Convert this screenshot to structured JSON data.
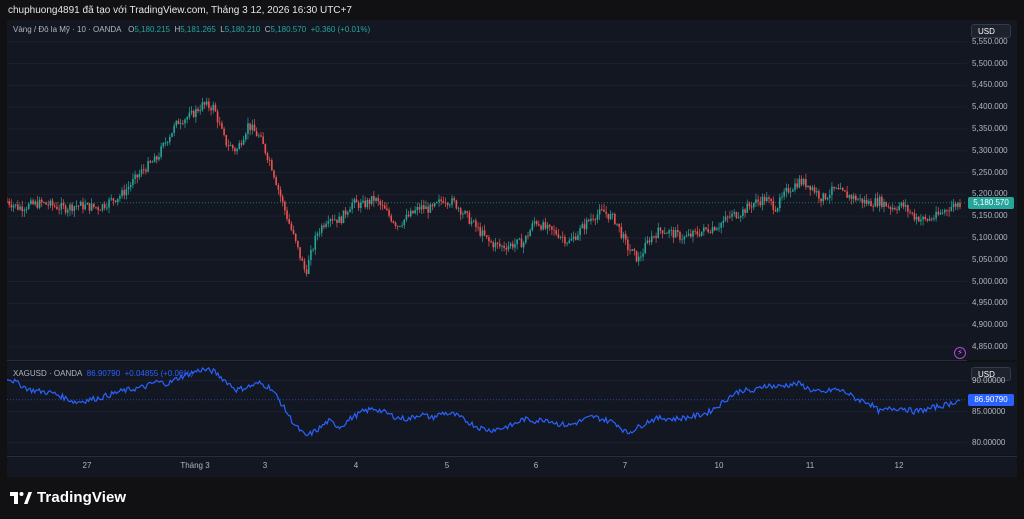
{
  "header": {
    "text": "chuphuong4891 đã tạo với TradingView.com, Tháng 3 12, 2026 16:30 UTC+7"
  },
  "legend_main": {
    "symbol": "Vàng / Đô la Mỹ · 10 · OANDA",
    "o_label": "O",
    "o_value": "5,180.215",
    "h_label": "H",
    "h_value": "5,181.265",
    "l_label": "L",
    "l_value": "5,180.210",
    "c_label": "C",
    "c_value": "5,180.570",
    "change": "+0.360 (+0.01%)"
  },
  "legend_sub": {
    "symbol": "XAGUSD · OANDA",
    "value": "86.90790",
    "change": "+0.04855 (+0.06%)"
  },
  "currency_main": "USD",
  "currency_sub": "USD",
  "brand": "TradingView",
  "icons": {
    "flash": "lightning-icon",
    "logo": "tradingview-logo-icon"
  },
  "colors": {
    "up": "#26a69a",
    "down": "#ef5350",
    "silver_line": "#2962ff",
    "background": "#131722"
  },
  "chart_data": [
    {
      "type": "candlestick",
      "instrument": "XAUUSD",
      "interval": "10",
      "ylim": [
        4820,
        5600
      ],
      "y_ticks": [
        "5,550.000",
        "5,500.000",
        "5,450.000",
        "5,400.000",
        "5,350.000",
        "5,300.000",
        "5,250.000",
        "5,200.000",
        "5,150.000",
        "5,100.000",
        "5,050.000",
        "5,000.000",
        "4,950.000",
        "4,900.000",
        "4,850.000"
      ],
      "last_price": "5,180.570",
      "last_value": 5180.57,
      "path": [
        [
          0,
          5185
        ],
        [
          1,
          5170
        ],
        [
          3,
          5180
        ],
        [
          5,
          5168
        ],
        [
          6,
          5175
        ],
        [
          8,
          5170
        ],
        [
          9,
          5185
        ],
        [
          10,
          5200
        ],
        [
          11,
          5230
        ],
        [
          12,
          5260
        ],
        [
          13,
          5280
        ],
        [
          14,
          5330
        ],
        [
          15,
          5370
        ],
        [
          16,
          5380
        ],
        [
          17,
          5405
        ],
        [
          18,
          5400
        ],
        [
          19,
          5320
        ],
        [
          20,
          5300
        ],
        [
          21,
          5360
        ],
        [
          22,
          5330
        ],
        [
          23,
          5270
        ],
        [
          24,
          5180
        ],
        [
          25,
          5100
        ],
        [
          26,
          5020
        ],
        [
          27,
          5110
        ],
        [
          28,
          5150
        ],
        [
          29,
          5140
        ],
        [
          30,
          5180
        ],
        [
          31,
          5175
        ],
        [
          32,
          5190
        ],
        [
          33,
          5160
        ],
        [
          34,
          5130
        ],
        [
          35,
          5150
        ],
        [
          36,
          5170
        ],
        [
          37,
          5165
        ],
        [
          38,
          5190
        ],
        [
          39,
          5180
        ],
        [
          40,
          5150
        ],
        [
          41,
          5120
        ],
        [
          42,
          5090
        ],
        [
          43,
          5080
        ],
        [
          44,
          5085
        ],
        [
          45,
          5090
        ],
        [
          46,
          5140
        ],
        [
          47,
          5120
        ],
        [
          48,
          5110
        ],
        [
          49,
          5090
        ],
        [
          50,
          5120
        ],
        [
          51,
          5150
        ],
        [
          52,
          5160
        ],
        [
          53,
          5140
        ],
        [
          54,
          5080
        ],
        [
          55,
          5050
        ],
        [
          56,
          5100
        ],
        [
          57,
          5120
        ],
        [
          58,
          5110
        ],
        [
          59,
          5100
        ],
        [
          60,
          5110
        ],
        [
          61,
          5120
        ],
        [
          62,
          5130
        ],
        [
          63,
          5150
        ],
        [
          64,
          5160
        ],
        [
          65,
          5180
        ],
        [
          66,
          5190
        ],
        [
          67,
          5170
        ],
        [
          68,
          5210
        ],
        [
          69,
          5230
        ],
        [
          70,
          5220
        ],
        [
          71,
          5190
        ],
        [
          72,
          5210
        ],
        [
          73,
          5200
        ],
        [
          74,
          5190
        ],
        [
          75,
          5180
        ],
        [
          76,
          5185
        ],
        [
          77,
          5170
        ],
        [
          78,
          5175
        ],
        [
          79,
          5150
        ],
        [
          80,
          5140
        ],
        [
          81,
          5150
        ],
        [
          82,
          5170
        ],
        [
          83,
          5180
        ]
      ]
    },
    {
      "type": "line",
      "instrument": "XAGUSD",
      "ylim": [
        78,
        93
      ],
      "y_ticks": [
        "90.00000",
        "85.00000",
        "80.00000"
      ],
      "last_price": "86.90790",
      "last_value": 86.9079,
      "path": [
        [
          0,
          90.5
        ],
        [
          2,
          88.5
        ],
        [
          4,
          88.0
        ],
        [
          6,
          86.5
        ],
        [
          8,
          87.2
        ],
        [
          10,
          88.3
        ],
        [
          12,
          89.0
        ],
        [
          13,
          89.8
        ],
        [
          14,
          89.5
        ],
        [
          15,
          90.5
        ],
        [
          16,
          91.2
        ],
        [
          17,
          91.8
        ],
        [
          18,
          91.5
        ],
        [
          19,
          90.0
        ],
        [
          20,
          88.5
        ],
        [
          21,
          89.0
        ],
        [
          22,
          89.6
        ],
        [
          23,
          88.8
        ],
        [
          24,
          86.0
        ],
        [
          25,
          83.0
        ],
        [
          26,
          81.0
        ],
        [
          27,
          82.0
        ],
        [
          28,
          83.5
        ],
        [
          29,
          82.5
        ],
        [
          30,
          84.0
        ],
        [
          31,
          85.0
        ],
        [
          32,
          85.5
        ],
        [
          33,
          84.8
        ],
        [
          34,
          84.0
        ],
        [
          35,
          83.8
        ],
        [
          36,
          84.6
        ],
        [
          37,
          84.0
        ],
        [
          38,
          84.8
        ],
        [
          39,
          84.5
        ],
        [
          40,
          83.5
        ],
        [
          41,
          82.5
        ],
        [
          42,
          82.0
        ],
        [
          43,
          82.3
        ],
        [
          44,
          82.8
        ],
        [
          45,
          83.8
        ],
        [
          46,
          83.5
        ],
        [
          47,
          83.8
        ],
        [
          48,
          83.0
        ],
        [
          49,
          82.8
        ],
        [
          50,
          83.5
        ],
        [
          51,
          84.2
        ],
        [
          52,
          83.7
        ],
        [
          53,
          83.2
        ],
        [
          54,
          81.5
        ],
        [
          55,
          82.5
        ],
        [
          56,
          83.6
        ],
        [
          57,
          84.0
        ],
        [
          58,
          83.8
        ],
        [
          59,
          84.0
        ],
        [
          60,
          84.3
        ],
        [
          61,
          84.8
        ],
        [
          62,
          86.0
        ],
        [
          63,
          87.5
        ],
        [
          64,
          88.5
        ],
        [
          65,
          88.2
        ],
        [
          66,
          89.3
        ],
        [
          67,
          89.0
        ],
        [
          68,
          89.3
        ],
        [
          69,
          89.5
        ],
        [
          70,
          88.5
        ],
        [
          71,
          88.0
        ],
        [
          72,
          88.6
        ],
        [
          73,
          88.2
        ],
        [
          74,
          87.0
        ],
        [
          75,
          86.5
        ],
        [
          76,
          85.0
        ],
        [
          77,
          85.5
        ],
        [
          78,
          85.6
        ],
        [
          79,
          85.0
        ],
        [
          80,
          85.3
        ],
        [
          81,
          85.8
        ],
        [
          82,
          86.2
        ],
        [
          83,
          86.9
        ]
      ]
    }
  ],
  "time_axis": [
    "27",
    "Tháng 3",
    "3",
    "4",
    "5",
    "6",
    "7",
    "10",
    "11",
    "12"
  ]
}
